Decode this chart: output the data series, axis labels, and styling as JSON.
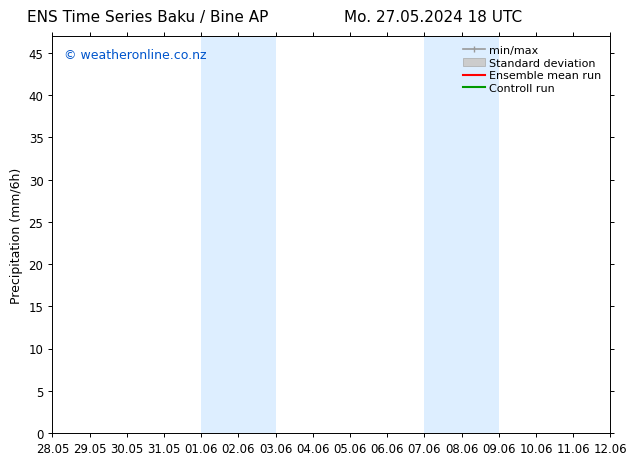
{
  "title_left": "ENS Time Series Baku / Bine AP",
  "title_right": "Mo. 27.05.2024 18 UTC",
  "ylabel": "Precipitation (mm/6h)",
  "xlabel_ticks": [
    "28.05",
    "29.05",
    "30.05",
    "31.05",
    "01.06",
    "02.06",
    "03.06",
    "04.06",
    "05.06",
    "06.06",
    "07.06",
    "08.06",
    "09.06",
    "10.06",
    "11.06",
    "12.06"
  ],
  "xlim_start": 0,
  "xlim_end": 15,
  "ylim": [
    0,
    47
  ],
  "yticks": [
    0,
    5,
    10,
    15,
    20,
    25,
    30,
    35,
    40,
    45
  ],
  "shaded_regions": [
    {
      "start": 4,
      "end": 6
    },
    {
      "start": 10,
      "end": 12
    }
  ],
  "shaded_color": "#ddeeff",
  "background_color": "#ffffff",
  "watermark_text": "© weatheronline.co.nz",
  "watermark_color": "#0055cc",
  "legend_labels": [
    "min/max",
    "Standard deviation",
    "Ensemble mean run",
    "Controll run"
  ],
  "legend_colors_line": [
    "#999999",
    "#bbbbbb",
    "#ff0000",
    "#009900"
  ],
  "title_fontsize": 11,
  "axis_fontsize": 9,
  "tick_fontsize": 8.5,
  "watermark_fontsize": 9,
  "legend_fontsize": 8
}
